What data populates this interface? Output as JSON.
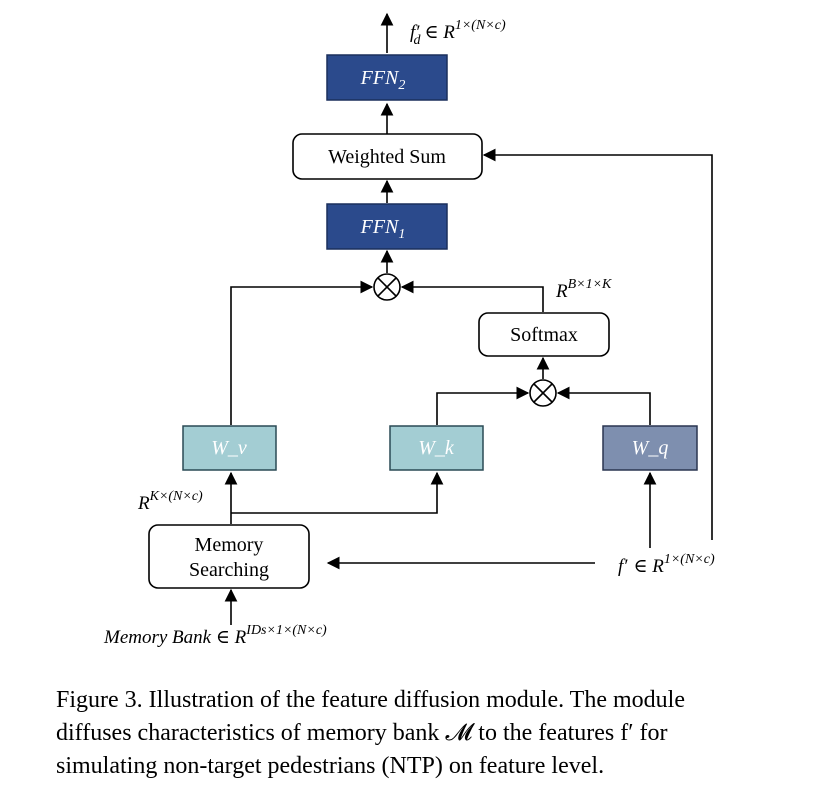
{
  "boxes": {
    "ffn2": "FFN",
    "ffn2_sub": "2",
    "weighted_sum": "Weighted Sum",
    "ffn1": "FFN",
    "ffn1_sub": "1",
    "softmax": "Softmax",
    "wv": "W_v",
    "wk": "W_k",
    "wq": "W_q",
    "memory_1": "Memory",
    "memory_2": "Searching"
  },
  "labels": {
    "output_base": "f",
    "output_prime": "′",
    "output_sub": "d",
    "output_in": "∈ R",
    "output_sup": "1×(N×c)",
    "softmax_out_base": "R",
    "softmax_out_sup": "B×1×K",
    "memory_out_base": "R",
    "memory_out_sup": "K×(N×c)",
    "input_base": "f",
    "input_prime": "′",
    "input_in": "∈ R",
    "input_sup": "1×(N×c)",
    "bank_text": "Memory Bank ∈ R",
    "bank_sup": "IDs×1×(N×c)",
    "mul_symbol": "⊗"
  },
  "caption": {
    "line1": "Figure 3. Illustration of the feature diffusion module. The module",
    "line2": "diffuses characteristics of memory bank 𝓜 to the features f′ for",
    "line3": "simulating non-target pedestrians (NTP) on feature level."
  },
  "colors": {
    "ffn": "#2b4a8c",
    "w_light": "#a3cdd3",
    "w_dark": "#7e8faf"
  }
}
